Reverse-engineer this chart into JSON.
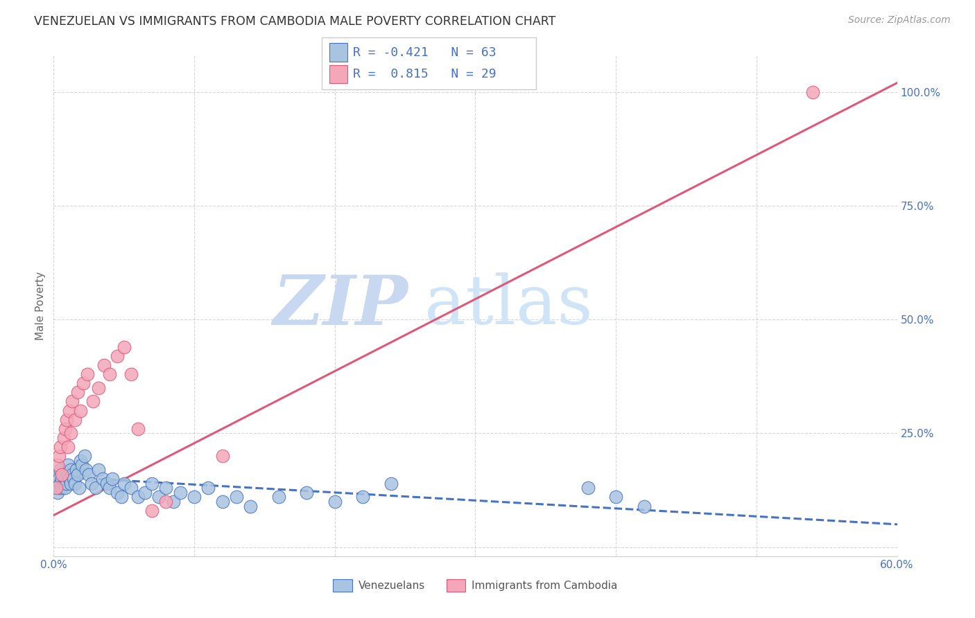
{
  "title": "VENEZUELAN VS IMMIGRANTS FROM CAMBODIA MALE POVERTY CORRELATION CHART",
  "source": "Source: ZipAtlas.com",
  "xlabel_venezuelans": "Venezuelans",
  "xlabel_cambodia": "Immigrants from Cambodia",
  "ylabel": "Male Poverty",
  "watermark_zip": "ZIP",
  "watermark_atlas": "atlas",
  "xlim": [
    0.0,
    0.6
  ],
  "ylim": [
    -0.02,
    1.08
  ],
  "xticks": [
    0.0,
    0.1,
    0.2,
    0.3,
    0.4,
    0.5,
    0.6
  ],
  "xticklabels": [
    "0.0%",
    "",
    "",
    "",
    "",
    "",
    "60.0%"
  ],
  "yticks": [
    0.0,
    0.25,
    0.5,
    0.75,
    1.0
  ],
  "yticklabels": [
    "",
    "25.0%",
    "50.0%",
    "75.0%",
    "100.0%"
  ],
  "legend_r_venezuelan": "-0.421",
  "legend_n_venezuelan": "63",
  "legend_r_cambodia": "0.815",
  "legend_n_cambodia": "29",
  "color_venezuelan": "#a8c4e0",
  "color_cambodia": "#f4a7b9",
  "line_color_venezuelan": "#4472c4",
  "line_color_cambodia": "#e05878",
  "background_color": "#ffffff",
  "title_fontsize": 12.5,
  "axis_label_fontsize": 11,
  "tick_fontsize": 11,
  "legend_fontsize": 13,
  "watermark_color_zip": "#c8d8f0",
  "watermark_color_atlas": "#d0e4f8",
  "venezuelan_x": [
    0.001,
    0.002,
    0.002,
    0.003,
    0.003,
    0.004,
    0.004,
    0.005,
    0.005,
    0.006,
    0.006,
    0.007,
    0.007,
    0.008,
    0.008,
    0.009,
    0.01,
    0.01,
    0.011,
    0.012,
    0.012,
    0.013,
    0.014,
    0.015,
    0.016,
    0.017,
    0.018,
    0.019,
    0.02,
    0.022,
    0.023,
    0.025,
    0.027,
    0.03,
    0.032,
    0.035,
    0.038,
    0.04,
    0.042,
    0.045,
    0.048,
    0.05,
    0.055,
    0.06,
    0.065,
    0.07,
    0.075,
    0.08,
    0.085,
    0.09,
    0.1,
    0.11,
    0.12,
    0.13,
    0.14,
    0.16,
    0.18,
    0.2,
    0.22,
    0.24,
    0.38,
    0.4,
    0.42
  ],
  "venezuelan_y": [
    0.14,
    0.13,
    0.15,
    0.12,
    0.16,
    0.13,
    0.15,
    0.14,
    0.17,
    0.13,
    0.15,
    0.14,
    0.16,
    0.13,
    0.15,
    0.14,
    0.16,
    0.18,
    0.15,
    0.14,
    0.17,
    0.16,
    0.15,
    0.14,
    0.17,
    0.16,
    0.13,
    0.19,
    0.18,
    0.2,
    0.17,
    0.16,
    0.14,
    0.13,
    0.17,
    0.15,
    0.14,
    0.13,
    0.15,
    0.12,
    0.11,
    0.14,
    0.13,
    0.11,
    0.12,
    0.14,
    0.11,
    0.13,
    0.1,
    0.12,
    0.11,
    0.13,
    0.1,
    0.11,
    0.09,
    0.11,
    0.12,
    0.1,
    0.11,
    0.14,
    0.13,
    0.11,
    0.09
  ],
  "cambodia_x": [
    0.002,
    0.003,
    0.004,
    0.005,
    0.006,
    0.007,
    0.008,
    0.009,
    0.01,
    0.011,
    0.012,
    0.013,
    0.015,
    0.017,
    0.019,
    0.021,
    0.024,
    0.028,
    0.032,
    0.036,
    0.04,
    0.045,
    0.05,
    0.055,
    0.06,
    0.07,
    0.08,
    0.12,
    0.54
  ],
  "cambodia_y": [
    0.13,
    0.18,
    0.2,
    0.22,
    0.16,
    0.24,
    0.26,
    0.28,
    0.22,
    0.3,
    0.25,
    0.32,
    0.28,
    0.34,
    0.3,
    0.36,
    0.38,
    0.32,
    0.35,
    0.4,
    0.38,
    0.42,
    0.44,
    0.38,
    0.26,
    0.08,
    0.1,
    0.2,
    1.0
  ]
}
